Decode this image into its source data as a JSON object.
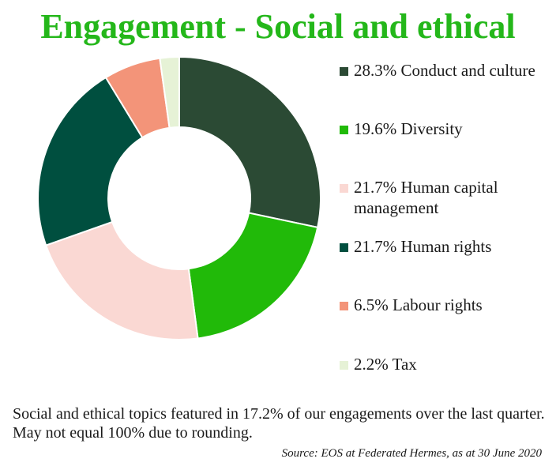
{
  "chart_data": {
    "type": "pie",
    "title": "Engagement - Social and ethical",
    "categories": [
      "Conduct and culture",
      "Diversity",
      "Human capital management",
      "Human rights",
      "Labour rights",
      "Tax"
    ],
    "values": [
      28.3,
      19.6,
      21.7,
      21.7,
      6.5,
      2.2
    ],
    "colors": [
      "#2b4a34",
      "#21ba09",
      "#fad8d3",
      "#004f3f",
      "#f39479",
      "#e6f2d6"
    ],
    "legend_labels": [
      "28.3% Conduct and culture",
      "19.6% Diversity",
      "21.7% Human capital management",
      "21.7% Human rights",
      "6.5% Labour rights",
      "2.2% Tax"
    ],
    "legend_position": "right",
    "donut": true
  },
  "footer": {
    "note": "Social and ethical topics featured in 17.2% of our engagements over the last quarter. May not equal 100% due to rounding.",
    "source": "Source: EOS at Federated Hermes, as at 30 June 2020"
  }
}
